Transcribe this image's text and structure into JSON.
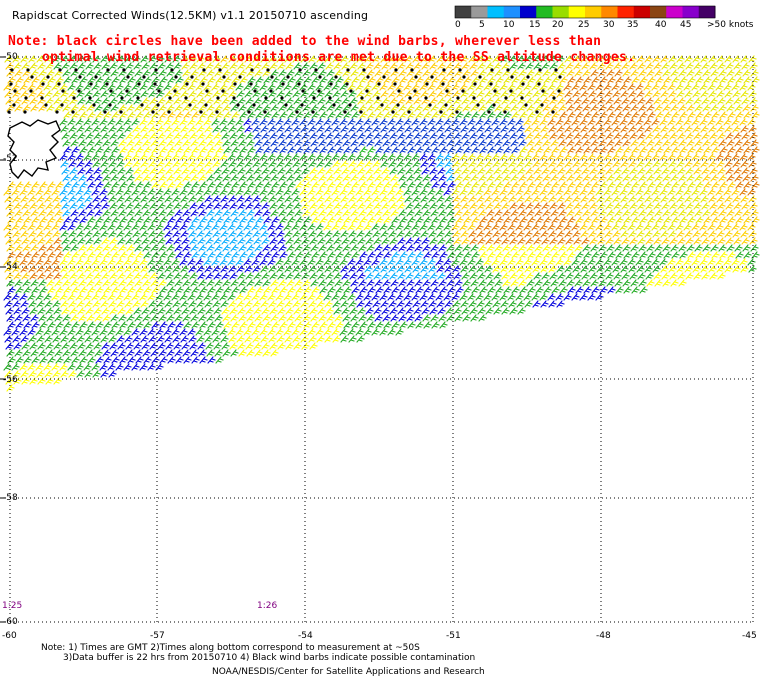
{
  "header": {
    "title": "Rapidscat Corrected Winds(12.5KM) v1.1 20150710 ascending"
  },
  "colorbar": {
    "labels": [
      "0",
      "5",
      "10",
      "15",
      "20",
      "25",
      "30",
      "35",
      "40",
      "45",
      ">50 knots"
    ],
    "colors": [
      "#404040",
      "#9a9a9a",
      "#00bfff",
      "#1e90ff",
      "#0000cd",
      "#22bb22",
      "#99dd00",
      "#ffff00",
      "#ffcc00",
      "#ff8800",
      "#ff2200",
      "#cc0000",
      "#8b4513",
      "#cc00cc",
      "#8800cc",
      "#440066"
    ]
  },
  "note": {
    "line1": "Note: black circles have been added to the wind barbs, wherever less than",
    "line2": "optimal wind retrieval conditions are met due to the SS altitude changes."
  },
  "map": {
    "lat_labels": [
      "-50",
      "-52",
      "-54",
      "-56",
      "-58",
      "-60"
    ],
    "lon_labels": [
      "-60",
      "-57",
      "-54",
      "-51",
      "-48",
      "-45"
    ],
    "time_labels": [
      "1:25",
      "1:26"
    ],
    "colors": {
      "land": "#000000",
      "grid": "#000000"
    }
  },
  "footer": {
    "line1": "Note: 1) Times are GMT 2)Times along bottom correspond to measurement at ~50S",
    "line2": "3)Data buffer is 22 hrs from 20150710 4) Black wind barbs indicate possible contamination",
    "line3": "NOAA/NESDIS/Center for Satellite Applications and Research"
  }
}
